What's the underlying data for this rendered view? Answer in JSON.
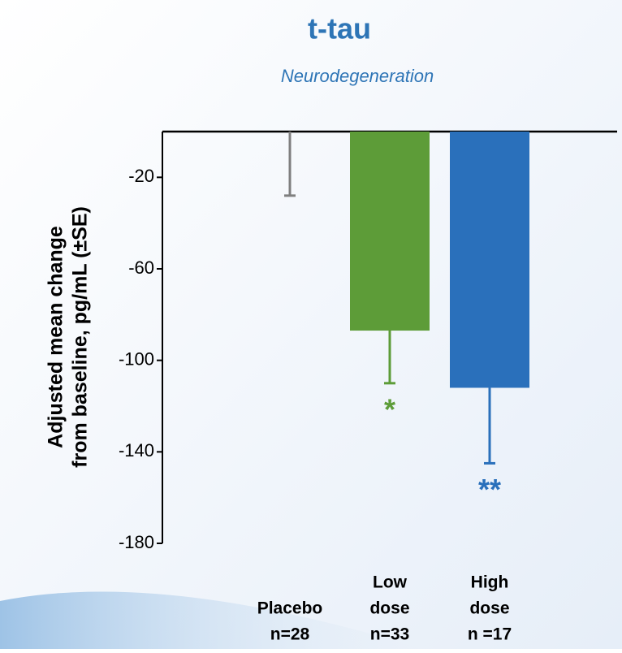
{
  "chart_data": {
    "type": "bar",
    "title": "t-tau",
    "subtitle": "Neurodegeneration",
    "y_label": [
      "Adjusted mean change",
      "from baseline, pg/mL (±SE)"
    ],
    "categories": [
      [
        "Placebo",
        "n=28"
      ],
      [
        "Low",
        "dose",
        "n=33"
      ],
      [
        "High",
        "dose",
        "n =17"
      ]
    ],
    "values": [
      0,
      -87,
      -112
    ],
    "errors": [
      28,
      23,
      33
    ],
    "colors": [
      "#7f7f7f",
      "#5d9c38",
      "#2a70bb"
    ],
    "annotations": [
      null,
      "*",
      "**"
    ],
    "ylim": [
      -180,
      0
    ],
    "yticks": [
      -20,
      -60,
      -100,
      -140,
      -180
    ]
  }
}
